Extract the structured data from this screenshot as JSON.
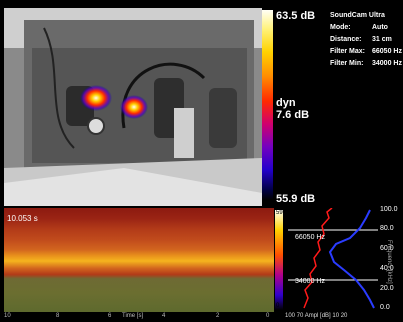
{
  "scale": {
    "max": "63.5 dB",
    "mid_mode": "dyn",
    "mid_value": "7.6 dB",
    "min": "55.9 dB"
  },
  "info": {
    "title": "SoundCam Ultra",
    "rows": [
      {
        "k": "Mode:",
        "v": "Auto"
      },
      {
        "k": "Distance:",
        "v": "31 cm"
      },
      {
        "k": "Filter Max:",
        "v": "66050 Hz"
      },
      {
        "k": "Filter Min:",
        "v": "34000 Hz"
      }
    ]
  },
  "spectrogram": {
    "time": "10.053 s",
    "xticks": [
      "10",
      "8",
      "6",
      "Time [s]",
      "4",
      "2",
      "0"
    ]
  },
  "spectrum": {
    "mini_top": "59",
    "mini_bot": "0",
    "filter_max_label": "66050 Hz",
    "filter_min_label": "34000 Hz",
    "yticks": [
      "100.0",
      "80.0",
      "60.0",
      "40.0",
      "20.0",
      "0.0"
    ],
    "ylabel": "Frequency [kHz]",
    "xaxis": "100  70  Ampl [dB] 10    20"
  },
  "colors": {
    "filter_lines": "#ffffff",
    "amplitude_trace": "#ff1a1a",
    "spectrum_trace": "#2a3cff"
  }
}
